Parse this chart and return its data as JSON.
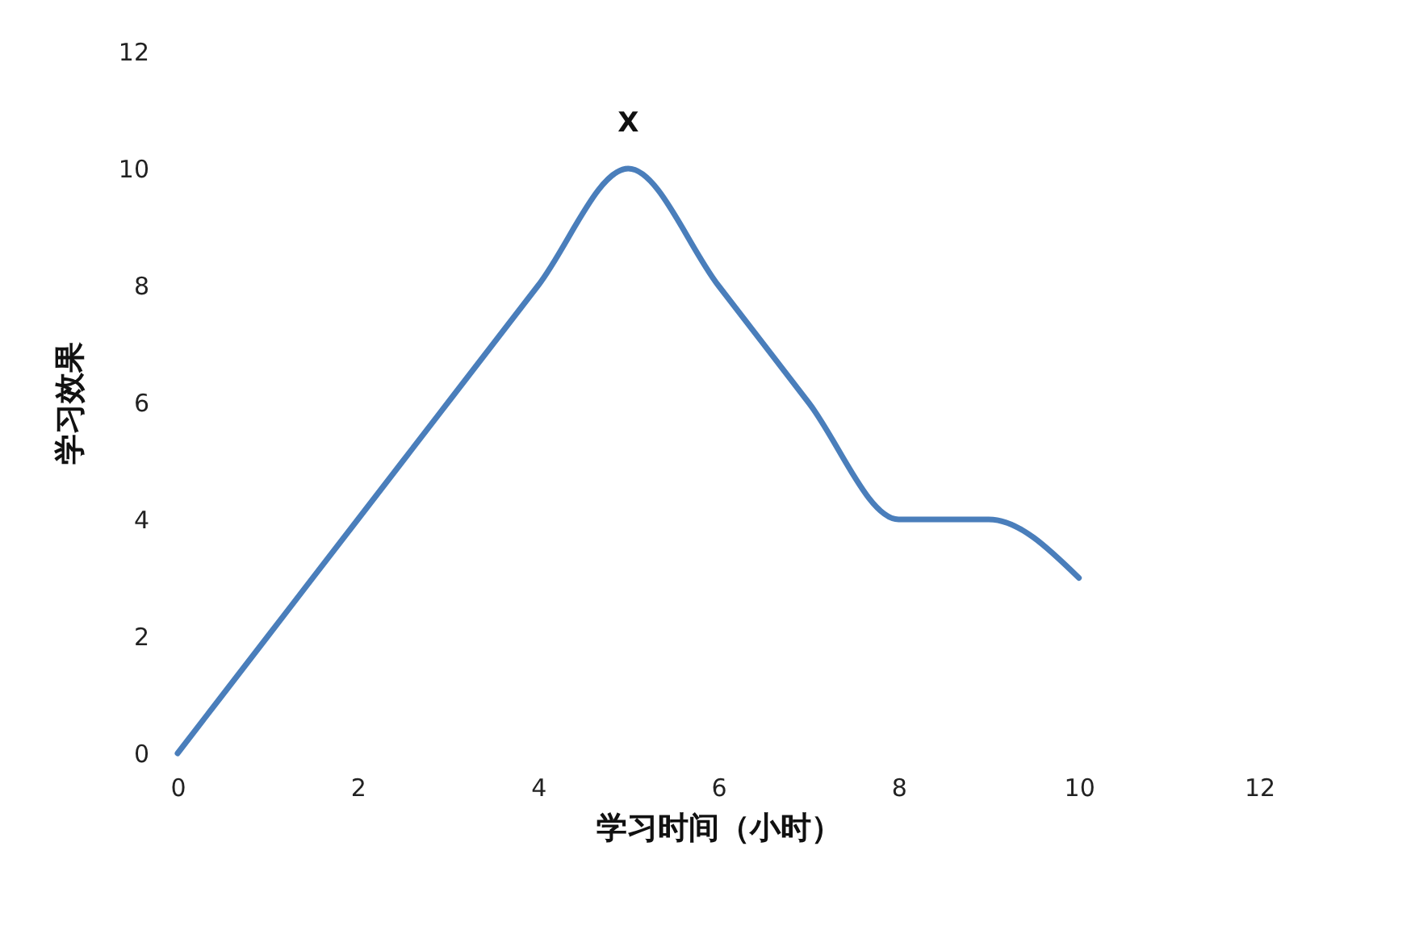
{
  "chart_data": {
    "type": "line",
    "xlabel": "学习时间（小时）",
    "ylabel": "学习效果",
    "x": [
      0,
      1,
      2,
      3,
      4,
      5,
      6,
      7,
      8,
      9,
      10
    ],
    "series": [
      {
        "color": "#4a7ebb",
        "values": [
          0,
          2,
          4,
          6,
          8,
          10,
          8,
          6,
          4,
          4,
          3
        ]
      }
    ],
    "xlim": [
      0,
      12
    ],
    "ylim": [
      0,
      12
    ],
    "xticks": [
      0,
      2,
      4,
      6,
      8,
      10,
      12
    ],
    "yticks": [
      0,
      2,
      4,
      6,
      8,
      10,
      12
    ],
    "annotations": [
      {
        "text": "X",
        "x": 5,
        "y": 10
      }
    ]
  }
}
